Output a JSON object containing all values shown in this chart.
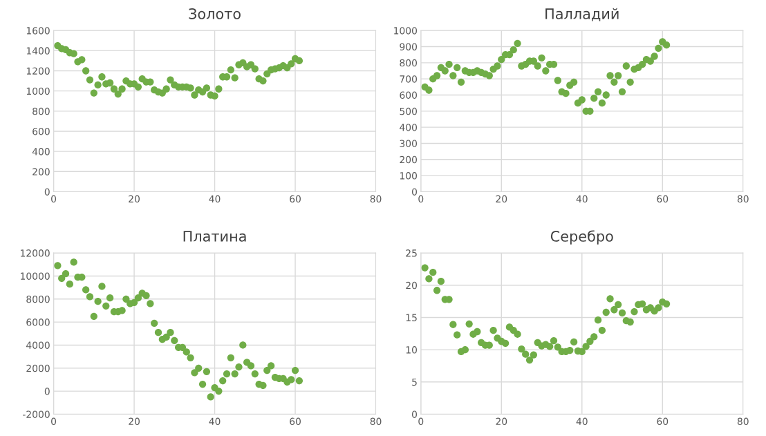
{
  "chart_data": [
    {
      "type": "scatter",
      "title": "Золото",
      "marker": "circle",
      "grid": true,
      "xlim": [
        0,
        80
      ],
      "xticks": [
        0,
        20,
        40,
        60,
        80
      ],
      "ylim": [
        0,
        1600
      ],
      "yticks": [
        0,
        200,
        400,
        600,
        800,
        1000,
        1200,
        1400,
        1600
      ],
      "series": [
        {
          "color": "#70ad47",
          "x": [
            1,
            2,
            3,
            4,
            5,
            6,
            7,
            8,
            9,
            10,
            11,
            12,
            13,
            14,
            15,
            16,
            17,
            18,
            19,
            20,
            21,
            22,
            23,
            24,
            25,
            26,
            27,
            28,
            29,
            30,
            31,
            32,
            33,
            34,
            35,
            36,
            37,
            38,
            39,
            40,
            41,
            42,
            43,
            44,
            45,
            46,
            47,
            48,
            49,
            50,
            51,
            52,
            53,
            54,
            55,
            56,
            57,
            58,
            59,
            60,
            61
          ],
          "values": [
            1450,
            1420,
            1410,
            1380,
            1370,
            1290,
            1310,
            1200,
            1110,
            980,
            1060,
            1140,
            1070,
            1080,
            1020,
            970,
            1020,
            1100,
            1070,
            1070,
            1040,
            1120,
            1090,
            1090,
            1010,
            990,
            980,
            1020,
            1110,
            1060,
            1040,
            1040,
            1040,
            1030,
            960,
            1010,
            990,
            1030,
            960,
            950,
            1020,
            1140,
            1140,
            1210,
            1130,
            1260,
            1280,
            1240,
            1260,
            1220,
            1120,
            1100,
            1170,
            1210,
            1220,
            1230,
            1250,
            1230,
            1270,
            1320,
            1300
          ]
        }
      ]
    },
    {
      "type": "scatter",
      "title": "Палладий",
      "marker": "circle",
      "grid": true,
      "xlim": [
        0,
        80
      ],
      "xticks": [
        0,
        20,
        40,
        60,
        80
      ],
      "ylim": [
        0,
        1000
      ],
      "yticks": [
        0,
        100,
        200,
        300,
        400,
        500,
        600,
        700,
        800,
        900,
        1000
      ],
      "series": [
        {
          "color": "#70ad47",
          "x": [
            1,
            2,
            3,
            4,
            5,
            6,
            7,
            8,
            9,
            10,
            11,
            12,
            13,
            14,
            15,
            16,
            17,
            18,
            19,
            20,
            21,
            22,
            23,
            24,
            25,
            26,
            27,
            28,
            29,
            30,
            31,
            32,
            33,
            34,
            35,
            36,
            37,
            38,
            39,
            40,
            41,
            42,
            43,
            44,
            45,
            46,
            47,
            48,
            49,
            50,
            51,
            52,
            53,
            54,
            55,
            56,
            57,
            58,
            59,
            60,
            61
          ],
          "values": [
            650,
            630,
            700,
            720,
            770,
            750,
            790,
            720,
            770,
            680,
            750,
            740,
            740,
            750,
            740,
            730,
            720,
            760,
            780,
            820,
            850,
            850,
            880,
            920,
            780,
            790,
            810,
            810,
            780,
            830,
            750,
            790,
            790,
            690,
            620,
            610,
            660,
            680,
            550,
            570,
            500,
            500,
            580,
            620,
            550,
            600,
            720,
            680,
            720,
            620,
            780,
            680,
            760,
            770,
            790,
            820,
            810,
            840,
            890,
            930,
            910
          ]
        }
      ]
    },
    {
      "type": "scatter",
      "title": "Платина",
      "marker": "circle",
      "grid": true,
      "xlim": [
        0,
        80
      ],
      "xticks": [
        0,
        20,
        40,
        60,
        80
      ],
      "ylim": [
        -2000,
        12000
      ],
      "yticks": [
        -2000,
        0,
        2000,
        4000,
        6000,
        8000,
        10000,
        12000
      ],
      "series": [
        {
          "color": "#70ad47",
          "x": [
            1,
            2,
            3,
            4,
            5,
            6,
            7,
            8,
            9,
            10,
            11,
            12,
            13,
            14,
            15,
            16,
            17,
            18,
            19,
            20,
            21,
            22,
            23,
            24,
            25,
            26,
            27,
            28,
            29,
            30,
            31,
            32,
            33,
            34,
            35,
            36,
            37,
            38,
            39,
            40,
            41,
            42,
            43,
            44,
            45,
            46,
            47,
            48,
            49,
            50,
            51,
            52,
            53,
            54,
            55,
            56,
            57,
            58,
            59,
            60,
            61
          ],
          "values": [
            10900,
            9800,
            10200,
            9300,
            11200,
            9900,
            9900,
            8800,
            8200,
            6500,
            7800,
            9100,
            7400,
            8100,
            6900,
            6900,
            7000,
            8000,
            7600,
            7700,
            8100,
            8500,
            8300,
            7600,
            5900,
            5100,
            4500,
            4700,
            5100,
            4400,
            3800,
            3800,
            3400,
            2900,
            1600,
            2000,
            600,
            1700,
            -500,
            300,
            0,
            900,
            1500,
            2900,
            1500,
            2100,
            4000,
            2500,
            2200,
            1500,
            600,
            500,
            1800,
            2200,
            1200,
            1100,
            1100,
            800,
            1000,
            1800,
            900
          ]
        }
      ]
    },
    {
      "type": "scatter",
      "title": "Серебро",
      "marker": "circle",
      "grid": true,
      "xlim": [
        0,
        80
      ],
      "xticks": [
        0,
        20,
        40,
        60,
        80
      ],
      "ylim": [
        0,
        25
      ],
      "yticks": [
        0,
        5,
        10,
        15,
        20,
        25
      ],
      "series": [
        {
          "color": "#70ad47",
          "x": [
            1,
            2,
            3,
            4,
            5,
            6,
            7,
            8,
            9,
            10,
            11,
            12,
            13,
            14,
            15,
            16,
            17,
            18,
            19,
            20,
            21,
            22,
            23,
            24,
            25,
            26,
            27,
            28,
            29,
            30,
            31,
            32,
            33,
            34,
            35,
            36,
            37,
            38,
            39,
            40,
            41,
            42,
            43,
            44,
            45,
            46,
            47,
            48,
            49,
            50,
            51,
            52,
            53,
            54,
            55,
            56,
            57,
            58,
            59,
            60,
            61
          ],
          "values": [
            22.7,
            21,
            22,
            19.2,
            20.6,
            17.8,
            17.8,
            13.9,
            12.3,
            9.7,
            10,
            14,
            12.4,
            12.8,
            11.1,
            10.7,
            10.7,
            13,
            11.8,
            11.3,
            11,
            13.5,
            13,
            12.4,
            10.1,
            9.3,
            8.4,
            9.2,
            11.1,
            10.6,
            10.8,
            10.5,
            11.4,
            10.4,
            9.7,
            9.7,
            9.9,
            11.2,
            9.8,
            9.7,
            10.5,
            11.3,
            12,
            14.6,
            13,
            15.8,
            17.9,
            16.2,
            17,
            15.7,
            14.5,
            14.3,
            15.9,
            17,
            17.1,
            16.2,
            16.5,
            16,
            16.5,
            17.4,
            17.1
          ]
        }
      ]
    }
  ]
}
